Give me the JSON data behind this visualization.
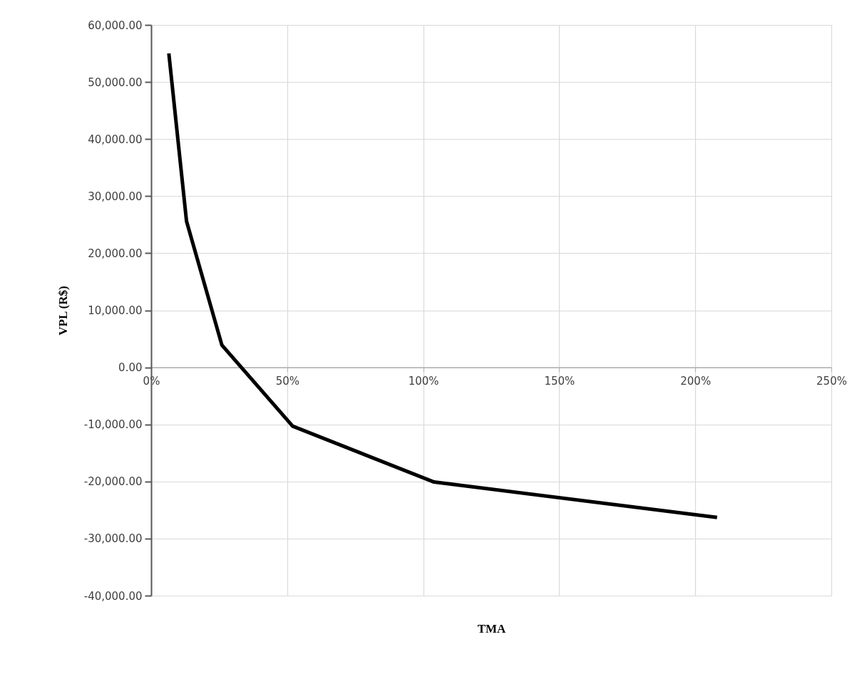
{
  "chart_data": {
    "type": "line",
    "xlabel": "TMA",
    "ylabel": "VPL (R$)",
    "x": [
      6.5,
      13,
      26,
      52,
      104,
      208
    ],
    "series": [
      {
        "color": "#000000",
        "values": [
          55000,
          25600,
          3900,
          -10300,
          -20100,
          -26300
        ]
      }
    ],
    "xlim": [
      0,
      250
    ],
    "xticks": [
      {
        "value": 0,
        "label": "0%"
      },
      {
        "value": 50,
        "label": "50%"
      },
      {
        "value": 100,
        "label": "100%"
      },
      {
        "value": 150,
        "label": "150%"
      },
      {
        "value": 200,
        "label": "200%"
      },
      {
        "value": 250,
        "label": "250%"
      }
    ],
    "ylim": [
      -40000,
      60000
    ],
    "yticks": [
      {
        "value": -40000,
        "label": "-40,000.00"
      },
      {
        "value": -30000,
        "label": "-30,000.00"
      },
      {
        "value": -20000,
        "label": "-20,000.00"
      },
      {
        "value": -10000,
        "label": "-10,000.00"
      },
      {
        "value": 0,
        "label": "0.00"
      },
      {
        "value": 10000,
        "label": "10,000.00"
      },
      {
        "value": 20000,
        "label": "20,000.00"
      },
      {
        "value": 30000,
        "label": "30,000.00"
      },
      {
        "value": 40000,
        "label": "40,000.00"
      },
      {
        "value": 50000,
        "label": "50,000.00"
      },
      {
        "value": 60000,
        "label": "60,000.00"
      }
    ],
    "grid": true,
    "marker": "none",
    "line_style": "solid"
  }
}
